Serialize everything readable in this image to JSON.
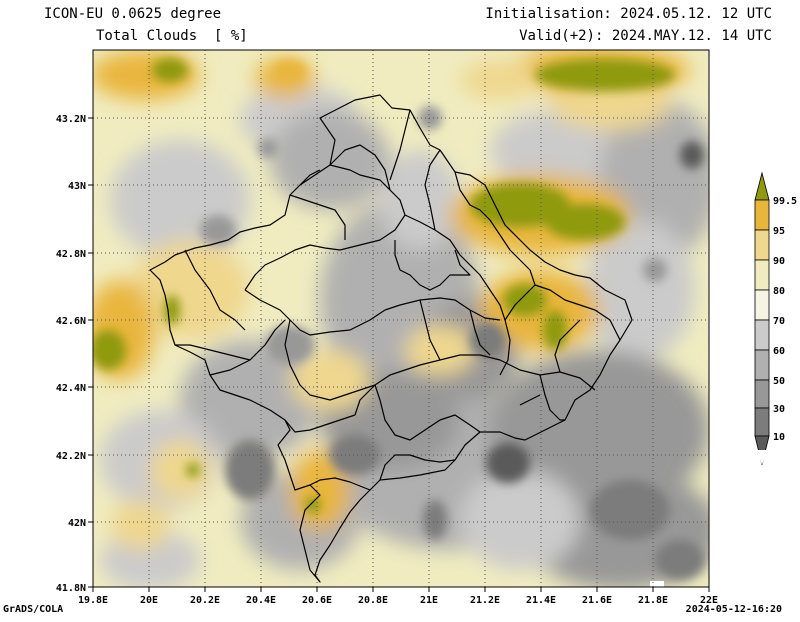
{
  "header": {
    "model": "ICON-EU 0.0625 degree",
    "variable": "Total Clouds  [ %]",
    "initialisation": "Initialisation: 2024.05.12. 12 UTC",
    "valid": "Valid(+2): 2024.MAY.12. 14 UTC"
  },
  "axes": {
    "lon_labels": [
      "19.8E",
      "20E",
      "20.2E",
      "20.4E",
      "20.6E",
      "20.8E",
      "21E",
      "21.2E",
      "21.4E",
      "21.6E",
      "21.8E",
      "22E"
    ],
    "lat_labels": [
      "43.2N",
      "43N",
      "42.8N",
      "42.6N",
      "42.4N",
      "42.2N",
      "42N",
      "41.8N"
    ]
  },
  "colorbar": {
    "levels": [
      "10",
      "30",
      "50",
      "60",
      "70",
      "80",
      "90",
      "95",
      "99.5"
    ],
    "colors": [
      "#5a5a5a",
      "#7c7c7c",
      "#989898",
      "#b0b0b0",
      "#cbcbcb",
      "#f0ecc0",
      "#efd78e",
      "#e9b63c",
      "#8f9a10"
    ]
  },
  "footer": {
    "software": "GrADS/COLA",
    "timestamp": "2024-05-12-16:20"
  }
}
